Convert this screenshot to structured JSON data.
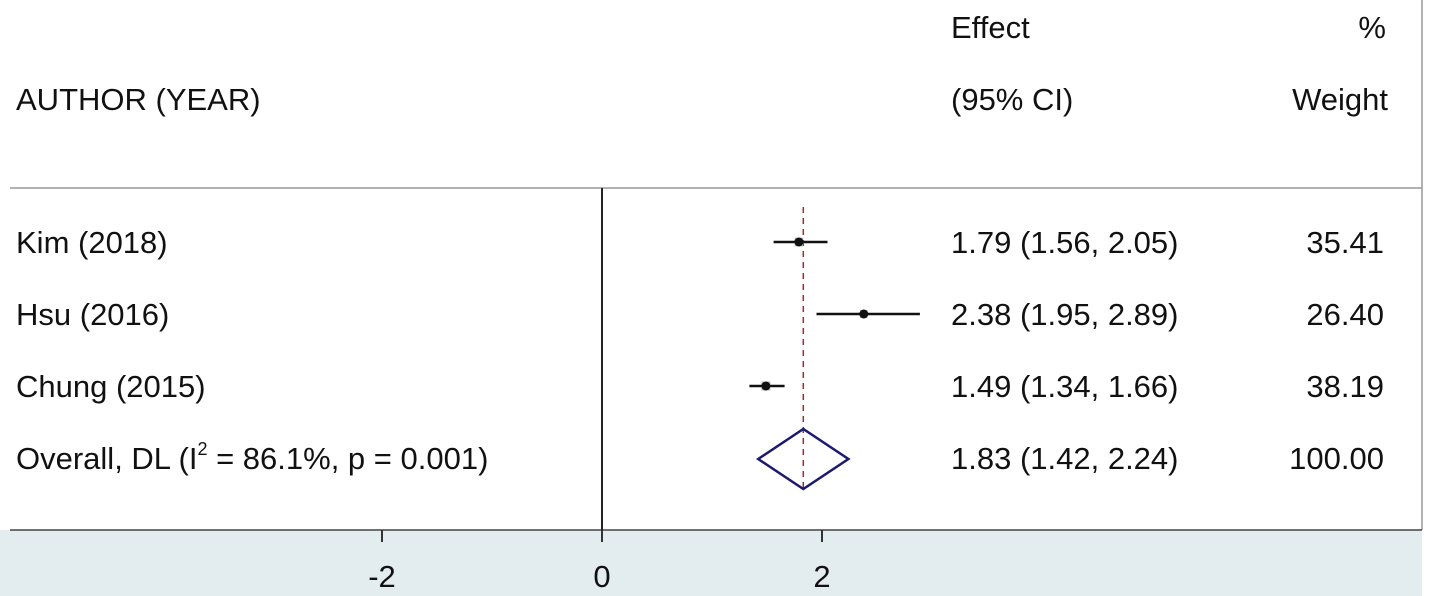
{
  "header": {
    "author_col": "AUTHOR (YEAR)",
    "effect_line1": "Effect",
    "effect_line2": "(95% CI)",
    "weight_line1": "%",
    "weight_line2": "Weight"
  },
  "chart_data": {
    "type": "forest",
    "columns": [
      "AUTHOR (YEAR)",
      "Effect (95% CI)",
      "% Weight"
    ],
    "studies": [
      {
        "label": "Kim (2018)",
        "effect": 1.79,
        "ci_low": 1.56,
        "ci_high": 2.05,
        "effect_text": "1.79 (1.56, 2.05)",
        "weight": 35.41,
        "weight_text": "35.41"
      },
      {
        "label": "Hsu (2016)",
        "effect": 2.38,
        "ci_low": 1.95,
        "ci_high": 2.89,
        "effect_text": "2.38 (1.95, 2.89)",
        "weight": 26.4,
        "weight_text": "26.40"
      },
      {
        "label": "Chung (2015)",
        "effect": 1.49,
        "ci_low": 1.34,
        "ci_high": 1.66,
        "effect_text": "1.49 (1.34, 1.66)",
        "weight": 38.19,
        "weight_text": "38.19"
      }
    ],
    "overall": {
      "label_prefix": "Overall, DL (I",
      "label_sup": "2",
      "label_suffix": " = 86.1%, p = 0.001)",
      "effect": 1.83,
      "ci_low": 1.42,
      "ci_high": 2.24,
      "effect_text": "1.83 (1.42, 2.24)",
      "weight": 100.0,
      "weight_text": "100.00"
    },
    "x_ticks": [
      -2,
      0,
      2
    ],
    "x_tick_labels": [
      "-2",
      "0",
      "2"
    ],
    "null_line": 0,
    "colors": {
      "marker": "#111111",
      "box": "#b0b0b0",
      "overall_diamond": "#1a1a6e",
      "overall_line": "#a52a2a",
      "axis_band": "#e3ecef"
    }
  }
}
